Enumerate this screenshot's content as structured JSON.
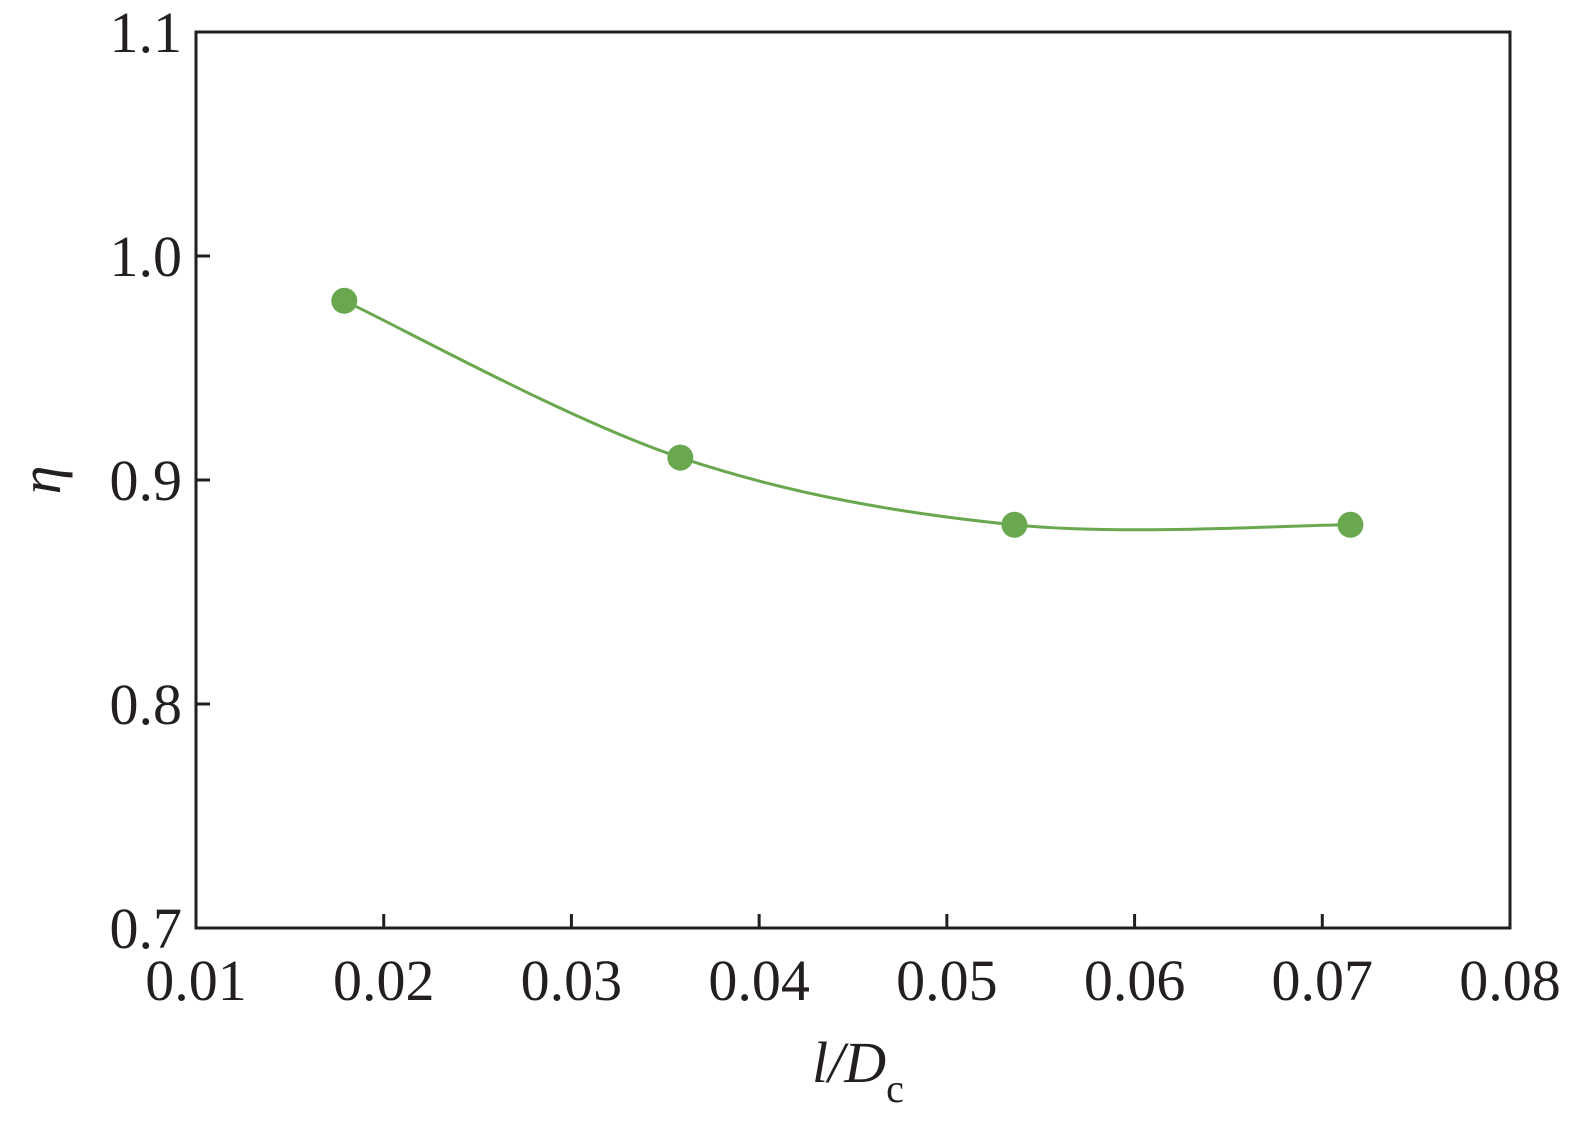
{
  "chart_data": {
    "type": "line",
    "x_label": {
      "main": "l/D",
      "sub": "c"
    },
    "y_label": "η",
    "x": [
      0.0179,
      0.0358,
      0.0536,
      0.0715
    ],
    "series": [
      {
        "color": "#6aa84f",
        "values": [
          0.98,
          0.91,
          0.88,
          0.88
        ]
      }
    ],
    "smooth": true,
    "xlim": [
      0.01,
      0.08
    ],
    "xticks": [
      0.01,
      0.02,
      0.03,
      0.04,
      0.05,
      0.06,
      0.07,
      0.08
    ],
    "ylim": [
      0.7,
      1.1
    ],
    "yticks": [
      0.7,
      0.8,
      0.9,
      {
        "value": 1,
        "label": "1.0"
      },
      1.1
    ]
  }
}
